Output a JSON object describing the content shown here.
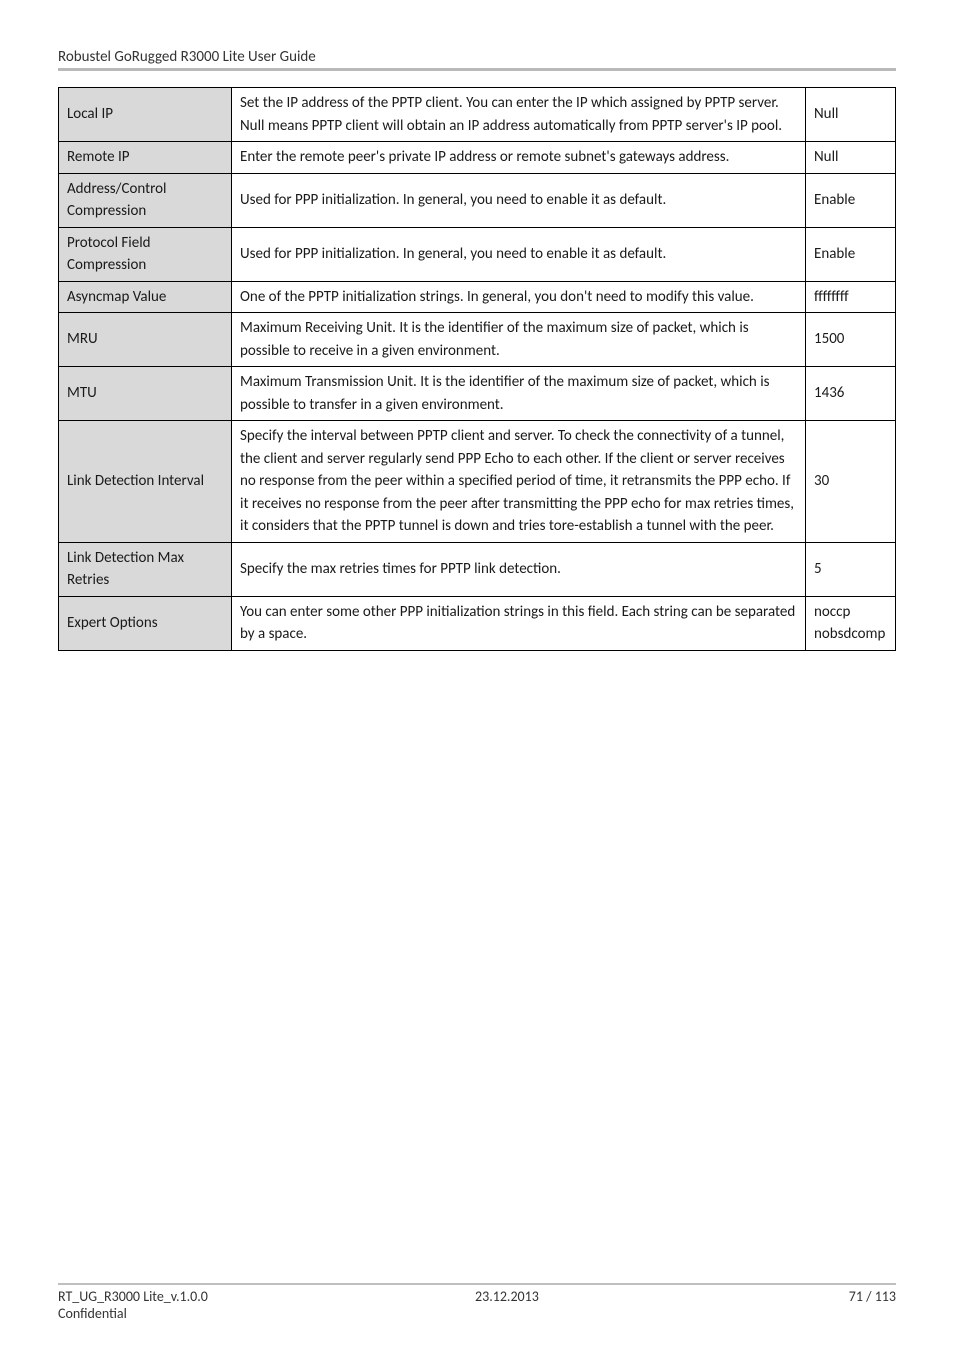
{
  "header": {
    "title": "Robustel GoRugged R3000 Lite User Guide"
  },
  "rows": [
    {
      "name": "Local IP",
      "desc": "Set the IP address of the PPTP client.\nYou can enter the IP which assigned by PPTP server. Null means PPTP client will obtain an IP address automatically from PPTP server's IP pool.",
      "def": "Null"
    },
    {
      "name": "Remote IP",
      "desc": "Enter the remote peer's private IP address or remote subnet's gateways address.",
      "def": "Null"
    },
    {
      "name": "Address/Control Compression",
      "desc": "Used for PPP initialization. In general, you need to enable it as default.",
      "def": "Enable"
    },
    {
      "name": "Protocol Field Compression",
      "desc": "Used for PPP initialization. In general, you need to enable it as default.",
      "def": "Enable"
    },
    {
      "name": "Asyncmap Value",
      "desc": "One of the PPTP initialization strings. In general, you don't need to modify this value.",
      "def": "ffffffff"
    },
    {
      "name": "MRU",
      "desc": "Maximum Receiving Unit. It is the identifier of the maximum size of packet, which is possible to receive in a given environment.",
      "def": "1500"
    },
    {
      "name": "MTU",
      "desc": "Maximum Transmission Unit. It is the identifier of the maximum size of packet, which is possible to transfer in a given environment.",
      "def": "1436"
    },
    {
      "name": "Link Detection Interval",
      "desc": "Specify the interval between PPTP client and server.\nTo check the connectivity of a tunnel, the client and server regularly send PPP Echo to each other. If the client or server receives no response from the peer within a specified period of time, it retransmits the PPP echo. If it receives no response from the peer after transmitting the PPP echo for max retries times, it considers that the PPTP tunnel is down and tries tore-establish a tunnel with the peer.",
      "def": "30"
    },
    {
      "name": "Link Detection Max Retries",
      "desc": "Specify the max retries times for PPTP link detection.",
      "def": "5"
    },
    {
      "name": "Expert Options",
      "desc": "You can enter some other PPP initialization strings in this field. Each string can be separated by a space.",
      "def": "noccp nobsdcomp"
    }
  ],
  "footer": {
    "left": "RT_UG_R3000 Lite_v.1.0.0",
    "center": "23.12.2013",
    "right": "71 / 113",
    "confidential": "Confidential"
  }
}
